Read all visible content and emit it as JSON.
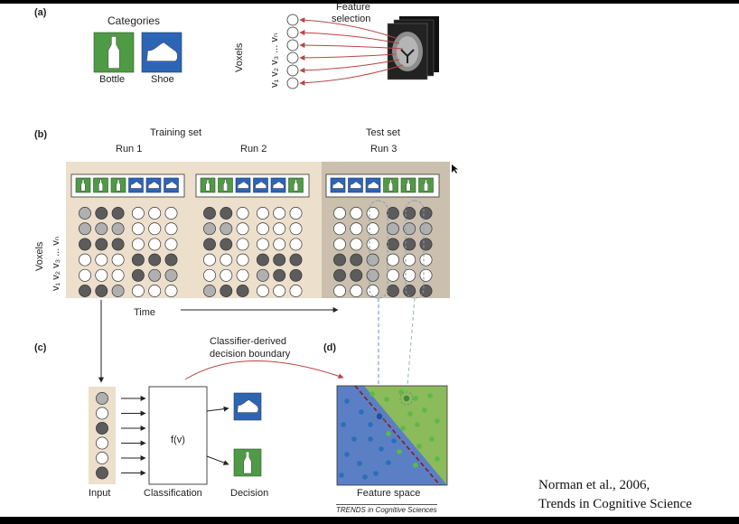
{
  "panels": {
    "a": "(a)",
    "b": "(b)",
    "c": "(c)",
    "d": "(d)"
  },
  "panel_a": {
    "categories_title": "Categories",
    "bottle_label": "Bottle",
    "shoe_label": "Shoe",
    "feature_selection_line1": "Feature",
    "feature_selection_line2": "selection",
    "voxels_label": "Voxels",
    "voxel_sub_label": "v₁ v₂ v₃ ... vₙ",
    "voxel_count": 6
  },
  "panel_b": {
    "training_set": "Training set",
    "test_set": "Test set",
    "run1": "Run 1",
    "run2": "Run 2",
    "run3": "Run 3",
    "voxels_label": "Voxels",
    "voxel_sub_label": "v₁ v₂ v₃ ... vₙ",
    "time_label": "Time",
    "run_categories": [
      [
        "bottle",
        "bottle",
        "bottle",
        "shoe",
        "shoe",
        "shoe"
      ],
      [
        "bottle",
        "bottle",
        "shoe",
        "shoe",
        "shoe",
        "bottle"
      ],
      [
        "shoe",
        "shoe",
        "shoe",
        "bottle",
        "bottle",
        "bottle"
      ]
    ],
    "activation_colors": {
      "dark": "#5c5c5c",
      "mid": "#b0b0b0",
      "light": "#ffffff"
    },
    "activations": [
      [
        [
          "mid",
          "dark",
          "dark",
          "light",
          "light",
          "light"
        ],
        [
          "mid",
          "mid",
          "mid",
          "light",
          "light",
          "light"
        ],
        [
          "dark",
          "dark",
          "dark",
          "light",
          "light",
          "light"
        ],
        [
          "light",
          "light",
          "light",
          "dark",
          "dark",
          "dark"
        ],
        [
          "light",
          "light",
          "light",
          "dark",
          "mid",
          "mid"
        ],
        [
          "dark",
          "dark",
          "mid",
          "light",
          "light",
          "light"
        ]
      ],
      [
        [
          "dark",
          "dark",
          "light",
          "light",
          "light",
          "light"
        ],
        [
          "mid",
          "mid",
          "light",
          "light",
          "light",
          "light"
        ],
        [
          "dark",
          "dark",
          "light",
          "light",
          "light",
          "light"
        ],
        [
          "light",
          "light",
          "light",
          "dark",
          "dark",
          "dark"
        ],
        [
          "light",
          "light",
          "light",
          "mid",
          "dark",
          "dark"
        ],
        [
          "mid",
          "dark",
          "dark",
          "light",
          "light",
          "light"
        ]
      ],
      [
        [
          "light",
          "light",
          "light",
          "dark",
          "dark",
          "dark"
        ],
        [
          "light",
          "light",
          "light",
          "mid",
          "mid",
          "mid"
        ],
        [
          "light",
          "light",
          "light",
          "dark",
          "dark",
          "dark"
        ],
        [
          "dark",
          "dark",
          "mid",
          "light",
          "light",
          "light"
        ],
        [
          "dark",
          "dark",
          "mid",
          "light",
          "light",
          "light"
        ],
        [
          "light",
          "light",
          "light",
          "dark",
          "dark",
          "dark"
        ]
      ]
    ]
  },
  "panel_c": {
    "input_label": "Input",
    "classification_label": "Classification",
    "decision_label": "Decision",
    "function_label": "f(v)",
    "boundary_line1": "Classifier-derived",
    "boundary_line2": "decision boundary",
    "input_activations": [
      "mid",
      "light",
      "dark",
      "light",
      "light",
      "dark"
    ]
  },
  "panel_d": {
    "feature_space_label": "Feature space",
    "journal_footer": "TRENDS in Cognitive Sciences",
    "blue_region_color": "#5a7fc4",
    "green_region_color": "#8bbb5a",
    "blue_point_color": "#2a6fb7",
    "green_point_color": "#5cb84a"
  },
  "citation": {
    "line1": "Norman et al., 2006,",
    "line2": "Trends in Cognitive Science"
  },
  "colors": {
    "bottle_bg": "#4f9a45",
    "shoe_bg": "#2e64b4",
    "training_bg": "#ecdfcb",
    "test_bg": "#cbbfae",
    "arrow_red": "#b84545"
  }
}
